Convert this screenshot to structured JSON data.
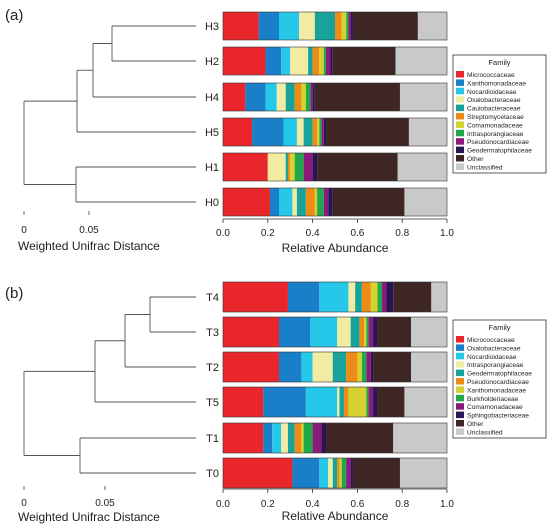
{
  "chart_data": [
    {
      "panel": "(a)",
      "type": "bar",
      "stacked": true,
      "orientation": "horizontal",
      "dendrogram_xlabel": "Weighted Unifrac Distance",
      "dendrogram_ticks": [
        "0",
        "0.05"
      ],
      "xlabel": "Relative Abundance",
      "xlim": [
        0,
        1
      ],
      "xticks": [
        "0.0",
        "0.2",
        "0.4",
        "0.6",
        "0.8",
        "1.0"
      ],
      "legend_title": "Family",
      "legend_placement": "right",
      "samples": [
        "H3",
        "H2",
        "H4",
        "H5",
        "H1",
        "H0"
      ],
      "series": [
        {
          "name": "Micrococcaceae",
          "color": "#e8262b",
          "values": [
            0.16,
            0.19,
            0.1,
            0.13,
            0.2,
            0.21
          ]
        },
        {
          "name": "Xanthomonadaceae",
          "color": "#1a7fc9",
          "values": [
            0.09,
            0.07,
            0.09,
            0.14,
            0.0,
            0.04
          ]
        },
        {
          "name": "Nocardioidaceae",
          "color": "#25c8e8",
          "values": [
            0.09,
            0.04,
            0.05,
            0.06,
            0.0,
            0.06
          ]
        },
        {
          "name": "Oxalobacteraceae",
          "color": "#f2eba2",
          "values": [
            0.07,
            0.08,
            0.04,
            0.03,
            0.08,
            0.02
          ]
        },
        {
          "name": "Caulobacteraceae",
          "color": "#17a39b",
          "values": [
            0.09,
            0.02,
            0.04,
            0.04,
            0.01,
            0.04
          ]
        },
        {
          "name": "Streptomycetaceae",
          "color": "#ee8b16",
          "values": [
            0.03,
            0.03,
            0.03,
            0.02,
            0.01,
            0.04
          ]
        },
        {
          "name": "Comamonadaceae",
          "color": "#d4d22e",
          "values": [
            0.02,
            0.02,
            0.02,
            0.01,
            0.02,
            0.01
          ]
        },
        {
          "name": "Intrasporangiaceae",
          "color": "#21a84a",
          "values": [
            0.01,
            0.01,
            0.02,
            0.01,
            0.04,
            0.03
          ]
        },
        {
          "name": "Pseudonocardiaceae",
          "color": "#8b1a7c",
          "values": [
            0.01,
            0.02,
            0.01,
            0.01,
            0.04,
            0.02
          ]
        },
        {
          "name": "Geodermatophilaceae",
          "color": "#2a1453",
          "values": [
            0.01,
            0.01,
            0.01,
            0.01,
            0.02,
            0.02
          ]
        },
        {
          "name": "Other",
          "color": "#3d2623",
          "values": [
            0.29,
            0.28,
            0.38,
            0.37,
            0.36,
            0.32
          ]
        },
        {
          "name": "Unclassified",
          "color": "#c9c9c9",
          "values": [
            0.13,
            0.23,
            0.21,
            0.17,
            0.22,
            0.19
          ]
        }
      ]
    },
    {
      "panel": "(b)",
      "type": "bar",
      "stacked": true,
      "orientation": "horizontal",
      "dendrogram_xlabel": "Weighted Unifrac Distance",
      "dendrogram_ticks": [
        "0",
        "0.05"
      ],
      "xlabel": "Relative Abundance",
      "xlim": [
        0,
        1
      ],
      "xticks": [
        "0.0",
        "0.2",
        "0.4",
        "0.6",
        "0.8",
        "1.0"
      ],
      "legend_title": "Family",
      "legend_placement": "right",
      "samples": [
        "T4",
        "T3",
        "T2",
        "T5",
        "T1",
        "T0"
      ],
      "series": [
        {
          "name": "Micrococcaceae",
          "color": "#e8262b",
          "values": [
            0.29,
            0.25,
            0.25,
            0.18,
            0.18,
            0.31
          ]
        },
        {
          "name": "Oxalobacteraceae",
          "color": "#1a7fc9",
          "values": [
            0.14,
            0.14,
            0.1,
            0.19,
            0.04,
            0.12
          ]
        },
        {
          "name": "Nocardioidaceae",
          "color": "#25c8e8",
          "values": [
            0.13,
            0.12,
            0.05,
            0.14,
            0.04,
            0.04
          ]
        },
        {
          "name": "Intrasporangiaceae",
          "color": "#f2eba2",
          "values": [
            0.03,
            0.06,
            0.09,
            0.01,
            0.03,
            0.02
          ]
        },
        {
          "name": "Geodermatophilaceae",
          "color": "#17a39b",
          "values": [
            0.03,
            0.04,
            0.06,
            0.02,
            0.03,
            0.02
          ]
        },
        {
          "name": "Pseudonocardiaceae",
          "color": "#ee8b16",
          "values": [
            0.04,
            0.02,
            0.05,
            0.02,
            0.03,
            0.01
          ]
        },
        {
          "name": "Xanthomonadaceae",
          "color": "#d4d22e",
          "values": [
            0.03,
            0.01,
            0.02,
            0.08,
            0.01,
            0.01
          ]
        },
        {
          "name": "Burkholderiaceae",
          "color": "#21a84a",
          "values": [
            0.02,
            0.01,
            0.02,
            0.01,
            0.04,
            0.02
          ]
        },
        {
          "name": "Comamonadaceae",
          "color": "#8b1a7c",
          "values": [
            0.02,
            0.02,
            0.02,
            0.02,
            0.04,
            0.02
          ]
        },
        {
          "name": "Sphingobacteriaceae",
          "color": "#2a1453",
          "values": [
            0.03,
            0.02,
            0.01,
            0.02,
            0.02,
            0.01
          ]
        },
        {
          "name": "Other",
          "color": "#3d2623",
          "values": [
            0.17,
            0.15,
            0.17,
            0.12,
            0.3,
            0.21
          ]
        },
        {
          "name": "Unclassified",
          "color": "#c9c9c9",
          "values": [
            0.07,
            0.16,
            0.16,
            0.19,
            0.24,
            0.21
          ]
        }
      ]
    }
  ]
}
